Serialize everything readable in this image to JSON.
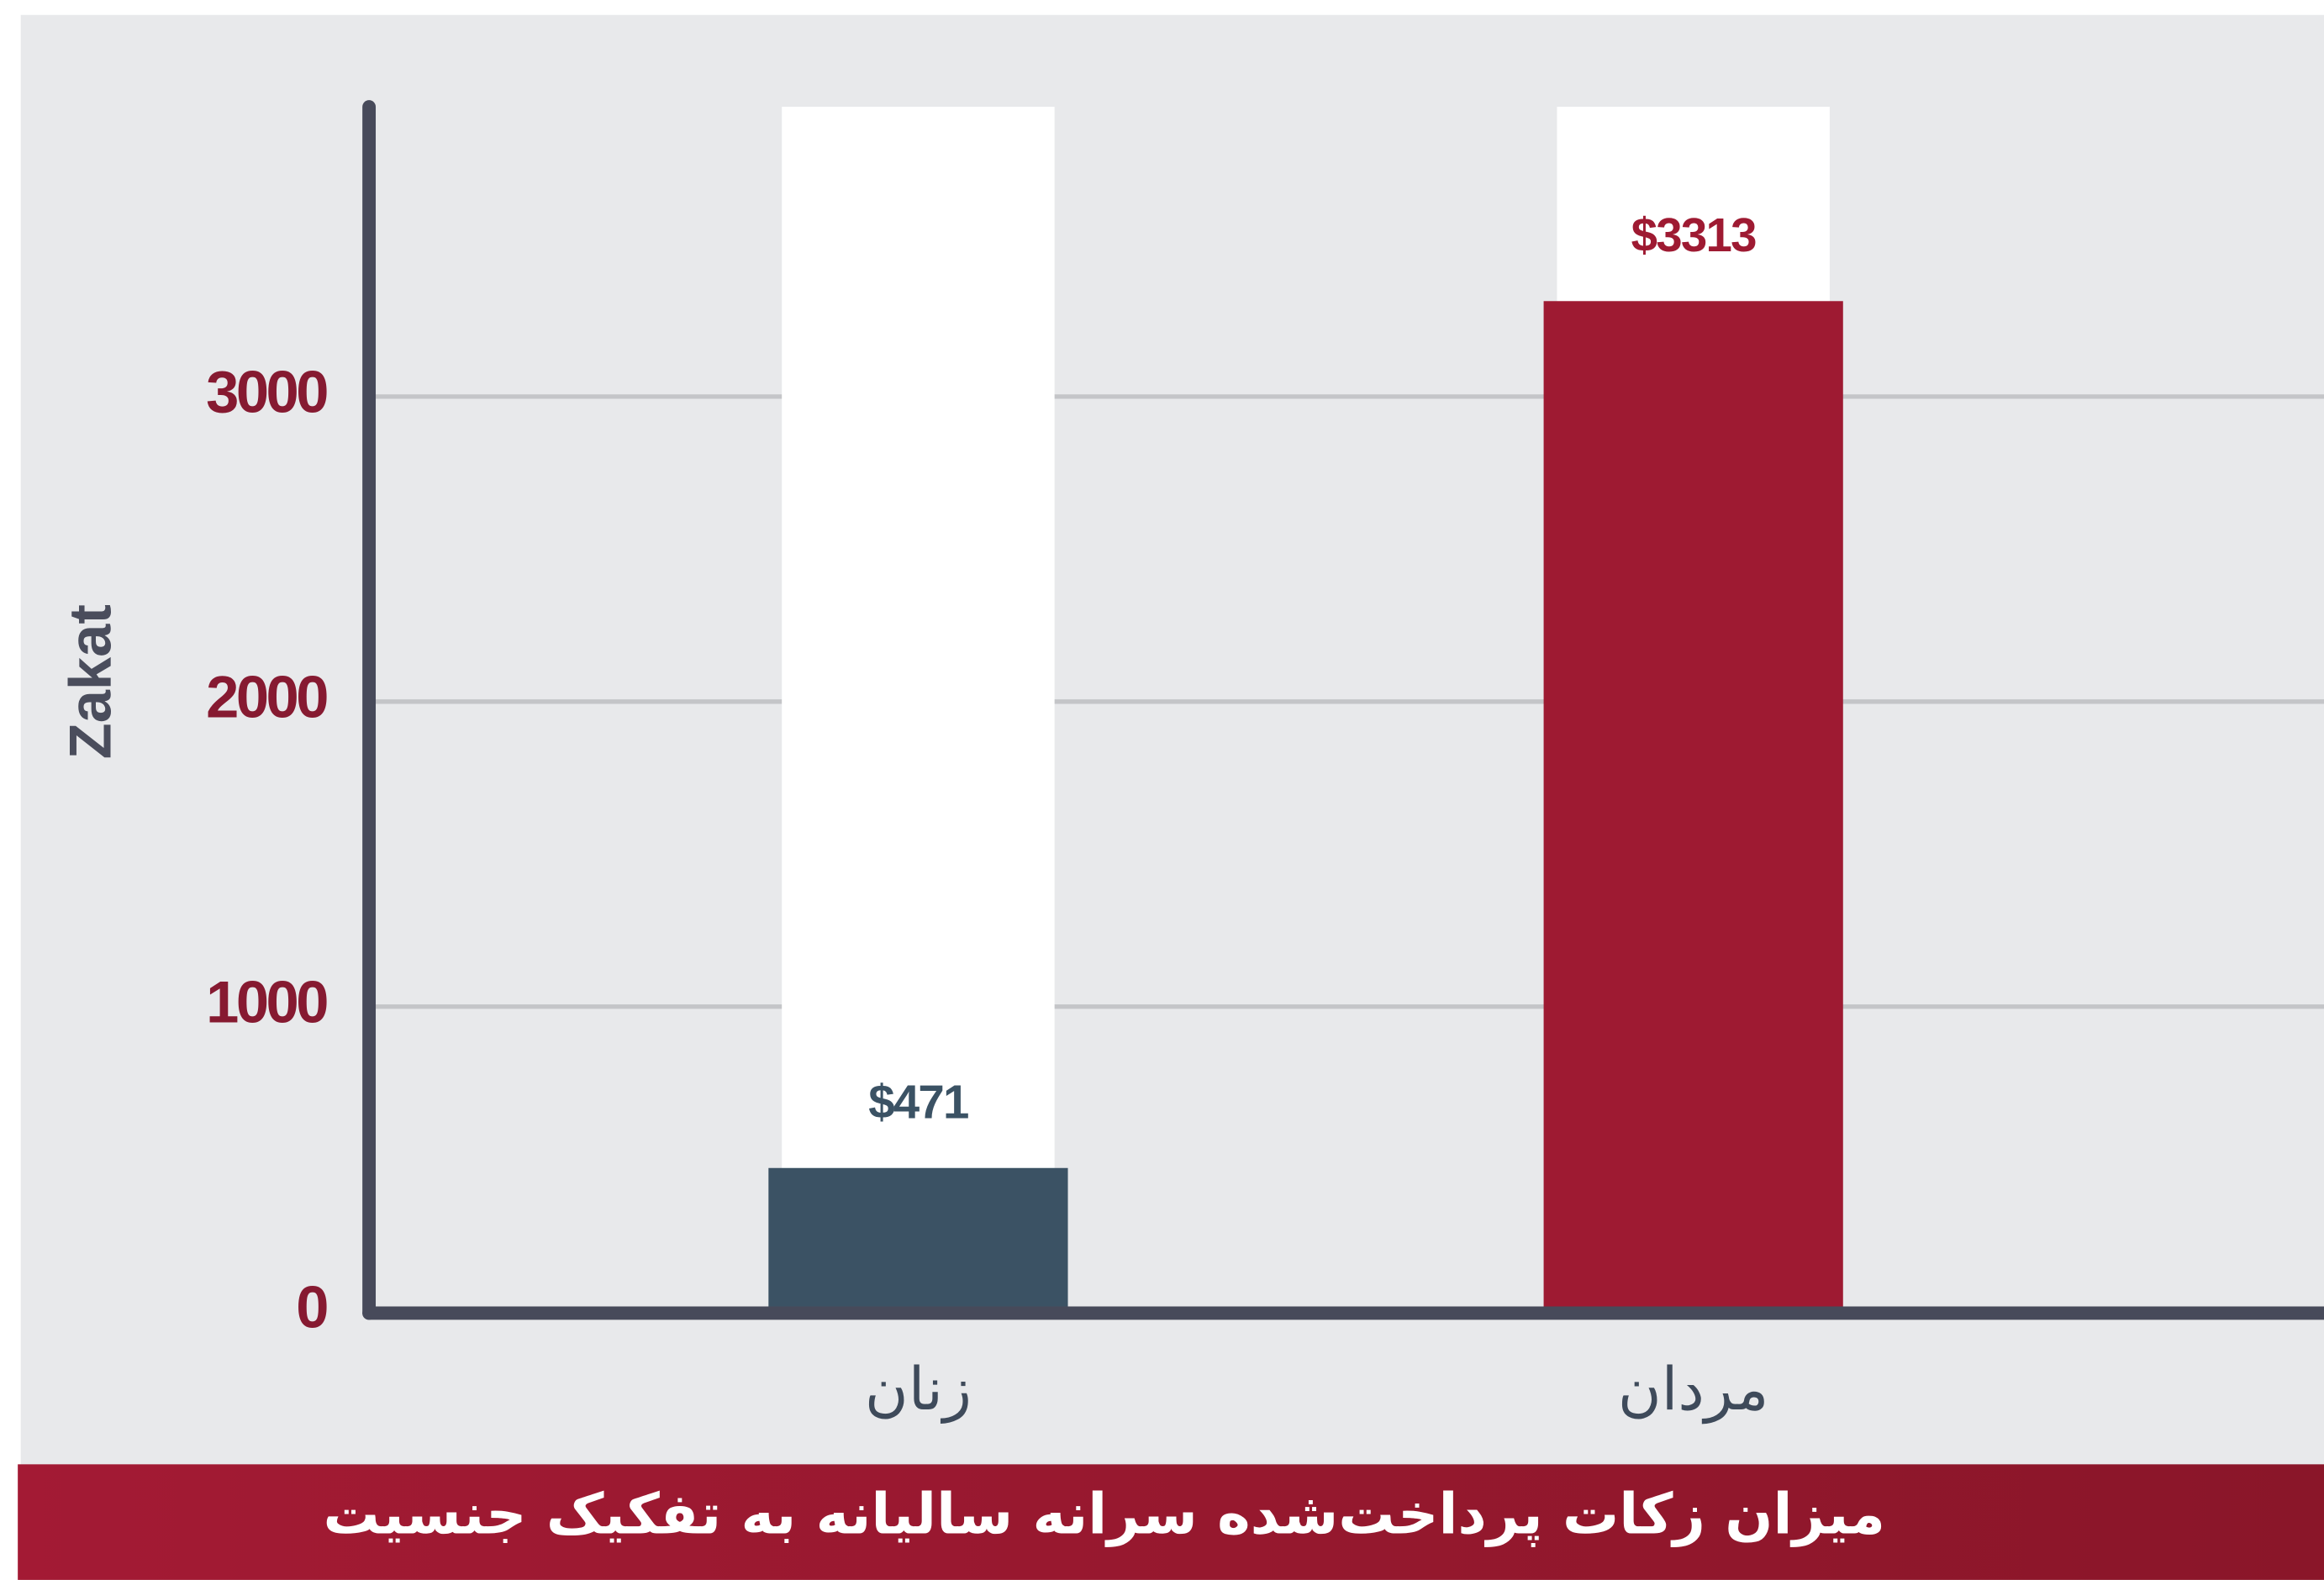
{
  "chart_data": {
    "type": "bar",
    "title": "میزان زکات پرداخت‌شده سرانه سالیانه به تفکیک جنسیت",
    "y_label": "Zakat",
    "categories": [
      "زنان",
      "مردان"
    ],
    "values": [
      471,
      3313
    ],
    "value_labels": [
      "$471",
      "$3313"
    ],
    "colors": [
      "#3b5264",
      "#9e1a32"
    ],
    "ylim": [
      0,
      3950
    ],
    "yticks": [
      0,
      1000,
      2000,
      3000
    ],
    "grid": true
  }
}
